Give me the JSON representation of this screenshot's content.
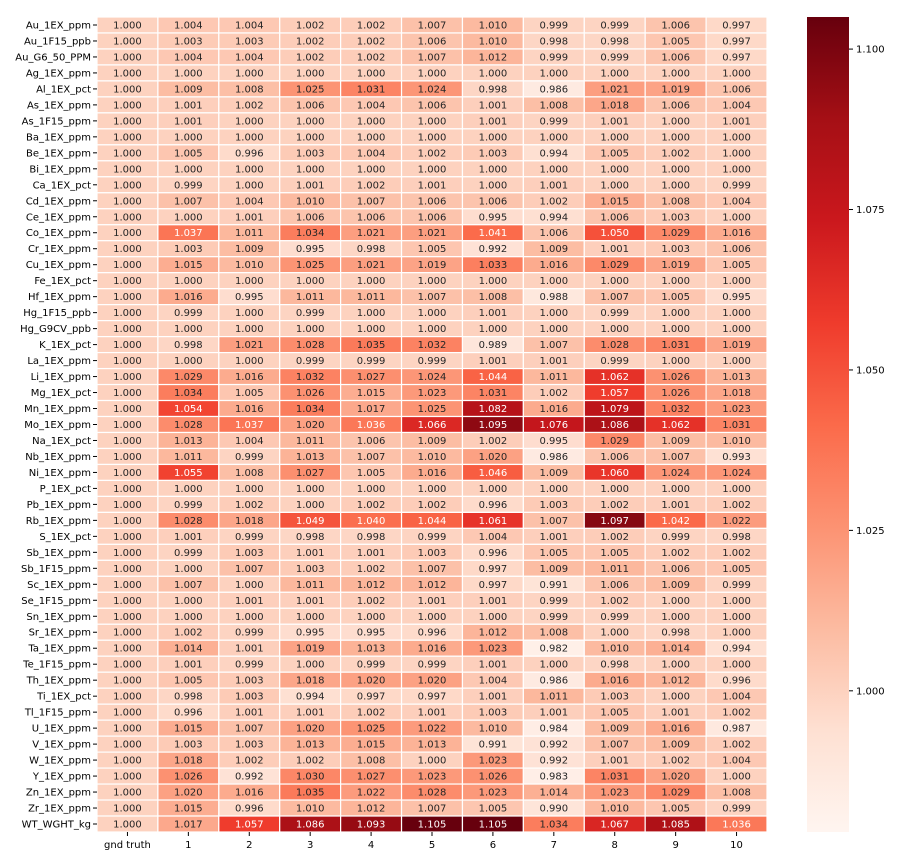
{
  "chart_data": {
    "type": "heatmap",
    "title": "",
    "xlabel": "",
    "ylabel": "",
    "color_scale": {
      "vmin": 0.978,
      "vmax": 1.105,
      "low_color": "#fff5f0",
      "high_color": "#67000d",
      "palette": "Reds"
    },
    "colorbar": {
      "ticks": [
        1.0,
        1.025,
        1.05,
        1.075,
        1.1
      ],
      "tick_labels": [
        "1.000",
        "1.025",
        "1.050",
        "1.075",
        "1.100"
      ]
    },
    "columns": [
      "gnd truth",
      "1",
      "2",
      "3",
      "4",
      "5",
      "6",
      "7",
      "8",
      "9",
      "10"
    ],
    "rows": [
      "Au_1EX_ppm",
      "Au_1F15_ppb",
      "Au_G6_50_PPM",
      "Ag_1EX_ppm",
      "Al_1EX_pct",
      "As_1EX_ppm",
      "As_1F15_ppm",
      "Ba_1EX_ppm",
      "Be_1EX_ppm",
      "Bi_1EX_ppm",
      "Ca_1EX_pct",
      "Cd_1EX_ppm",
      "Ce_1EX_ppm",
      "Co_1EX_ppm",
      "Cr_1EX_ppm",
      "Cu_1EX_ppm",
      "Fe_1EX_pct",
      "Hf_1EX_ppm",
      "Hg_1F15_ppb",
      "Hg_G9CV_ppb",
      "K_1EX_pct",
      "La_1EX_ppm",
      "Li_1EX_ppm",
      "Mg_1EX_pct",
      "Mn_1EX_ppm",
      "Mo_1EX_ppm",
      "Na_1EX_pct",
      "Nb_1EX_ppm",
      "Ni_1EX_ppm",
      "P_1EX_pct",
      "Pb_1EX_ppm",
      "Rb_1EX_ppm",
      "S_1EX_pct",
      "Sb_1EX_ppm",
      "Sb_1F15_ppm",
      "Sc_1EX_ppm",
      "Se_1F15_ppm",
      "Sn_1EX_ppm",
      "Sr_1EX_ppm",
      "Ta_1EX_ppm",
      "Te_1F15_ppm",
      "Th_1EX_ppm",
      "Ti_1EX_pct",
      "Tl_1F15_ppm",
      "U_1EX_ppm",
      "V_1EX_ppm",
      "W_1EX_ppm",
      "Y_1EX_ppm",
      "Zn_1EX_ppm",
      "Zr_1EX_ppm",
      "WT_WGHT_kg"
    ],
    "values": [
      [
        1.0,
        1.004,
        1.004,
        1.002,
        1.002,
        1.007,
        1.01,
        0.999,
        0.999,
        1.006,
        0.997
      ],
      [
        1.0,
        1.003,
        1.003,
        1.002,
        1.002,
        1.006,
        1.01,
        0.998,
        0.998,
        1.005,
        0.997
      ],
      [
        1.0,
        1.004,
        1.004,
        1.002,
        1.002,
        1.007,
        1.012,
        0.999,
        0.999,
        1.006,
        0.997
      ],
      [
        1.0,
        1.0,
        1.0,
        1.0,
        1.0,
        1.0,
        1.0,
        1.0,
        1.0,
        1.0,
        1.0
      ],
      [
        1.0,
        1.009,
        1.008,
        1.025,
        1.031,
        1.024,
        0.998,
        0.986,
        1.021,
        1.019,
        1.006
      ],
      [
        1.0,
        1.001,
        1.002,
        1.006,
        1.004,
        1.006,
        1.001,
        1.008,
        1.018,
        1.006,
        1.004
      ],
      [
        1.0,
        1.001,
        1.0,
        1.0,
        1.0,
        1.0,
        1.001,
        0.999,
        1.001,
        1.0,
        1.001
      ],
      [
        1.0,
        1.0,
        1.0,
        1.0,
        1.0,
        1.0,
        1.0,
        1.0,
        1.0,
        1.0,
        1.0
      ],
      [
        1.0,
        1.005,
        0.996,
        1.003,
        1.004,
        1.002,
        1.003,
        0.994,
        1.005,
        1.002,
        1.0
      ],
      [
        1.0,
        1.0,
        1.0,
        1.0,
        1.0,
        1.0,
        1.0,
        1.0,
        1.0,
        1.0,
        1.0
      ],
      [
        1.0,
        0.999,
        1.0,
        1.001,
        1.002,
        1.001,
        1.0,
        1.001,
        1.0,
        1.0,
        0.999
      ],
      [
        1.0,
        1.007,
        1.004,
        1.01,
        1.007,
        1.006,
        1.006,
        1.002,
        1.015,
        1.008,
        1.004
      ],
      [
        1.0,
        1.0,
        1.001,
        1.006,
        1.006,
        1.006,
        0.995,
        0.994,
        1.006,
        1.003,
        1.0
      ],
      [
        1.0,
        1.037,
        1.011,
        1.034,
        1.021,
        1.021,
        1.041,
        1.006,
        1.05,
        1.029,
        1.016
      ],
      [
        1.0,
        1.003,
        1.009,
        0.995,
        0.998,
        1.005,
        0.992,
        1.009,
        1.001,
        1.003,
        1.006
      ],
      [
        1.0,
        1.015,
        1.01,
        1.025,
        1.021,
        1.019,
        1.033,
        1.016,
        1.029,
        1.019,
        1.005
      ],
      [
        1.0,
        1.0,
        1.0,
        1.0,
        1.0,
        1.0,
        1.0,
        1.0,
        1.0,
        1.0,
        1.0
      ],
      [
        1.0,
        1.016,
        0.995,
        1.011,
        1.011,
        1.007,
        1.008,
        0.988,
        1.007,
        1.005,
        0.995
      ],
      [
        1.0,
        0.999,
        1.0,
        0.999,
        1.0,
        1.0,
        1.001,
        1.0,
        0.999,
        1.0,
        1.0
      ],
      [
        1.0,
        1.0,
        1.0,
        1.0,
        1.0,
        1.0,
        1.0,
        1.0,
        1.0,
        1.0,
        1.0
      ],
      [
        1.0,
        0.998,
        1.021,
        1.028,
        1.035,
        1.032,
        0.989,
        1.007,
        1.028,
        1.031,
        1.019
      ],
      [
        1.0,
        1.0,
        1.0,
        0.999,
        0.999,
        0.999,
        1.001,
        1.001,
        0.999,
        1.0,
        1.0
      ],
      [
        1.0,
        1.029,
        1.016,
        1.032,
        1.027,
        1.024,
        1.044,
        1.011,
        1.062,
        1.026,
        1.013
      ],
      [
        1.0,
        1.034,
        1.005,
        1.026,
        1.015,
        1.023,
        1.031,
        1.002,
        1.057,
        1.026,
        1.018
      ],
      [
        1.0,
        1.054,
        1.016,
        1.034,
        1.017,
        1.025,
        1.082,
        1.016,
        1.079,
        1.032,
        1.023
      ],
      [
        1.0,
        1.028,
        1.037,
        1.02,
        1.036,
        1.066,
        1.095,
        1.076,
        1.086,
        1.062,
        1.031
      ],
      [
        1.0,
        1.013,
        1.004,
        1.011,
        1.006,
        1.009,
        1.002,
        0.995,
        1.029,
        1.009,
        1.01
      ],
      [
        1.0,
        1.011,
        0.999,
        1.013,
        1.007,
        1.01,
        1.02,
        0.986,
        1.006,
        1.007,
        0.993
      ],
      [
        1.0,
        1.055,
        1.008,
        1.027,
        1.005,
        1.016,
        1.046,
        1.009,
        1.06,
        1.024,
        1.024
      ],
      [
        1.0,
        1.0,
        1.0,
        1.0,
        1.0,
        1.0,
        1.0,
        1.0,
        1.0,
        1.0,
        1.0
      ],
      [
        1.0,
        0.999,
        1.002,
        1.0,
        1.002,
        1.002,
        0.996,
        1.003,
        1.002,
        1.001,
        1.002
      ],
      [
        1.0,
        1.028,
        1.018,
        1.049,
        1.04,
        1.044,
        1.061,
        1.007,
        1.097,
        1.042,
        1.022
      ],
      [
        1.0,
        1.001,
        0.999,
        0.998,
        0.998,
        0.999,
        1.004,
        1.001,
        1.002,
        0.999,
        0.998
      ],
      [
        1.0,
        0.999,
        1.003,
        1.001,
        1.001,
        1.003,
        0.996,
        1.005,
        1.005,
        1.002,
        1.002
      ],
      [
        1.0,
        1.0,
        1.007,
        1.003,
        1.002,
        1.007,
        0.997,
        1.009,
        1.011,
        1.006,
        1.005
      ],
      [
        1.0,
        1.007,
        1.0,
        1.011,
        1.012,
        1.012,
        0.997,
        0.991,
        1.006,
        1.009,
        0.999
      ],
      [
        1.0,
        1.0,
        1.001,
        1.001,
        1.002,
        1.001,
        1.001,
        0.999,
        1.002,
        1.0,
        1.0
      ],
      [
        1.0,
        1.0,
        1.0,
        1.0,
        1.0,
        1.0,
        1.0,
        0.999,
        0.999,
        1.0,
        1.0
      ],
      [
        1.0,
        1.002,
        0.999,
        0.995,
        0.995,
        0.996,
        1.012,
        1.008,
        1.0,
        0.998,
        1.0
      ],
      [
        1.0,
        1.014,
        1.001,
        1.019,
        1.013,
        1.016,
        1.023,
        0.982,
        1.01,
        1.014,
        0.994
      ],
      [
        1.0,
        1.001,
        0.999,
        1.0,
        0.999,
        0.999,
        1.001,
        1.0,
        0.998,
        1.0,
        1.0
      ],
      [
        1.0,
        1.005,
        1.003,
        1.018,
        1.02,
        1.02,
        1.004,
        0.986,
        1.016,
        1.012,
        0.996
      ],
      [
        1.0,
        0.998,
        1.003,
        0.994,
        0.997,
        0.997,
        1.001,
        1.011,
        1.003,
        1.0,
        1.004
      ],
      [
        1.0,
        0.996,
        1.001,
        1.001,
        1.002,
        1.001,
        1.003,
        1.001,
        1.005,
        1.001,
        1.002
      ],
      [
        1.0,
        1.015,
        1.007,
        1.02,
        1.025,
        1.022,
        1.01,
        0.984,
        1.009,
        1.016,
        0.987
      ],
      [
        1.0,
        1.003,
        1.003,
        1.013,
        1.015,
        1.013,
        0.991,
        0.992,
        1.007,
        1.009,
        1.002
      ],
      [
        1.0,
        1.018,
        1.002,
        1.002,
        1.008,
        1.0,
        1.023,
        0.992,
        1.001,
        1.002,
        1.004
      ],
      [
        1.0,
        1.026,
        0.992,
        1.03,
        1.027,
        1.023,
        1.026,
        0.983,
        1.031,
        1.02,
        1.0
      ],
      [
        1.0,
        1.02,
        1.016,
        1.035,
        1.022,
        1.028,
        1.023,
        1.014,
        1.023,
        1.029,
        1.008
      ],
      [
        1.0,
        1.015,
        0.996,
        1.01,
        1.012,
        1.007,
        1.005,
        0.99,
        1.01,
        1.005,
        0.999
      ],
      [
        1.0,
        1.017,
        1.057,
        1.086,
        1.093,
        1.105,
        1.105,
        1.034,
        1.067,
        1.085,
        1.036
      ]
    ]
  }
}
